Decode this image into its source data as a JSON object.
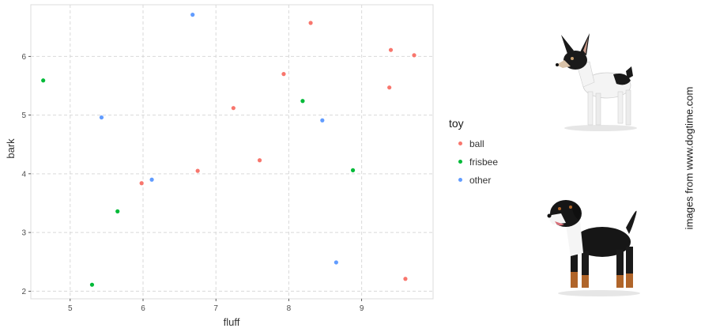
{
  "chart_data": {
    "type": "scatter",
    "xlabel": "fluff",
    "ylabel": "bark",
    "xlim": [
      4.46,
      9.98
    ],
    "ylim": [
      1.87,
      6.88
    ],
    "xticks": [
      5,
      6,
      7,
      8,
      9
    ],
    "yticks": [
      2,
      3,
      4,
      5,
      6
    ],
    "grid": true,
    "legend_position": "right",
    "legend_title": "toy",
    "series": [
      {
        "name": "ball",
        "color": "#F8766D",
        "points": [
          [
            5.98,
            3.84
          ],
          [
            6.75,
            4.05
          ],
          [
            7.24,
            5.12
          ],
          [
            7.6,
            4.23
          ],
          [
            7.93,
            5.7
          ],
          [
            8.3,
            6.57
          ],
          [
            9.38,
            5.47
          ],
          [
            9.4,
            6.11
          ],
          [
            9.6,
            2.21
          ],
          [
            9.72,
            6.02
          ]
        ]
      },
      {
        "name": "frisbee",
        "color": "#00BA38",
        "points": [
          [
            4.63,
            5.59
          ],
          [
            5.3,
            2.11
          ],
          [
            5.65,
            3.36
          ],
          [
            8.19,
            5.24
          ],
          [
            8.88,
            4.06
          ]
        ]
      },
      {
        "name": "other",
        "color": "#619CFF",
        "points": [
          [
            5.43,
            4.96
          ],
          [
            6.12,
            3.9
          ],
          [
            6.68,
            6.71
          ],
          [
            8.46,
            4.91
          ],
          [
            8.65,
            2.49
          ]
        ]
      }
    ]
  },
  "credit_text": "images from www.dogtime.com",
  "images": {
    "dog_top": "toy-fox-terrier-dog-icon",
    "dog_bottom": "bernese-mix-dog-icon"
  }
}
